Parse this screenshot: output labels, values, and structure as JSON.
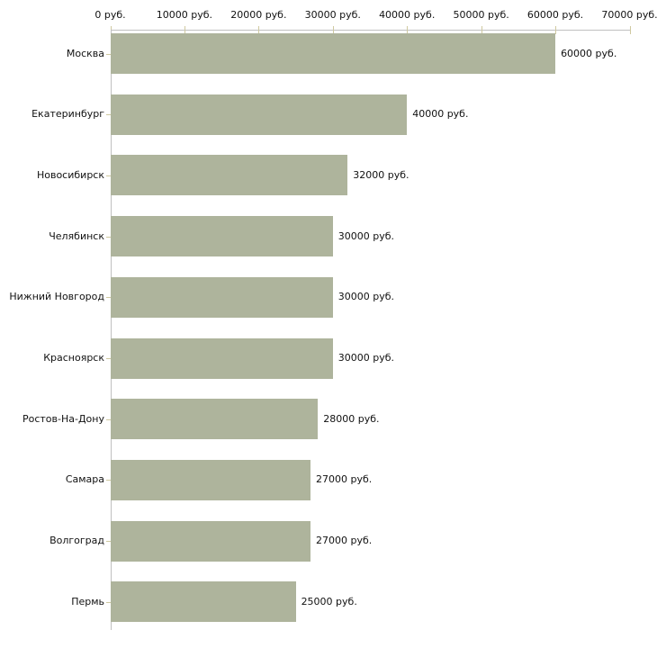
{
  "chart_data": {
    "type": "bar",
    "orientation": "horizontal",
    "title": "",
    "xlabel": "",
    "ylabel": "",
    "unit": "руб.",
    "grid": false,
    "legend": null,
    "categories": [
      "Москва",
      "Екатеринбург",
      "Новосибирск",
      "Челябинск",
      "Нижний Новгород",
      "Красноярск",
      "Ростов-На-Дону",
      "Самара",
      "Волгоград",
      "Пермь"
    ],
    "values": [
      60000,
      40000,
      32000,
      30000,
      30000,
      30000,
      28000,
      27000,
      27000,
      25000
    ],
    "value_labels": [
      "60000 руб.",
      "40000 руб.",
      "32000 руб.",
      "30000 руб.",
      "30000 руб.",
      "30000 руб.",
      "28000 руб.",
      "27000 руб.",
      "27000 руб.",
      "25000 руб."
    ],
    "xlim": [
      0,
      70000
    ],
    "xticks": [
      0,
      10000,
      20000,
      30000,
      40000,
      50000,
      60000,
      70000
    ],
    "xtick_labels": [
      "0 руб.",
      "10000 руб.",
      "20000 руб.",
      "30000 руб.",
      "40000 руб.",
      "50000 руб.",
      "60000 руб.",
      "70000 руб."
    ],
    "colors": {
      "bar_fill": "#aeb49c",
      "axis_line": "#c0c0c0",
      "tick_mark": "#cfc9a0",
      "text": "#111111",
      "background": "#ffffff"
    }
  }
}
